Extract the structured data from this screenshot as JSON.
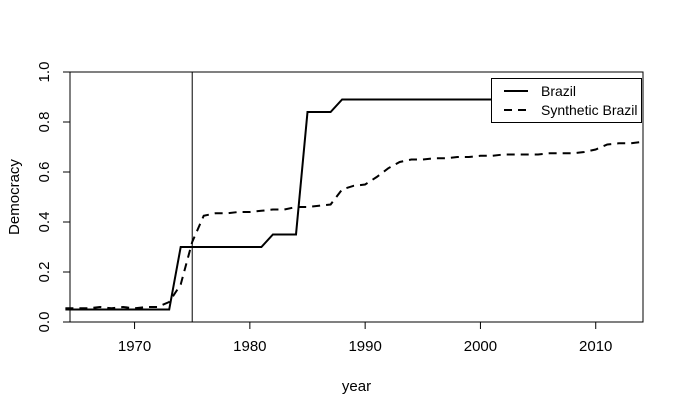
{
  "figure": {
    "background": "#ffffff",
    "axis_color": "#000000",
    "line_color": "#000000"
  },
  "chart_data": {
    "type": "line",
    "title": "",
    "xlabel": "year",
    "ylabel": "Democracy",
    "xlim": [
      1964.4,
      2014.1
    ],
    "ylim": [
      0,
      1
    ],
    "x_ticks": [
      1970,
      1980,
      1990,
      2000,
      2010
    ],
    "y_ticks": [
      "0.0",
      "0.2",
      "0.4",
      "0.6",
      "0.8",
      "1.0"
    ],
    "grid": false,
    "legend_position": "topright",
    "vline_x": 1975,
    "x": [
      1964,
      1965,
      1966,
      1967,
      1968,
      1969,
      1970,
      1971,
      1972,
      1973,
      1974,
      1975,
      1976,
      1977,
      1978,
      1979,
      1980,
      1981,
      1982,
      1983,
      1984,
      1985,
      1986,
      1987,
      1988,
      1989,
      1990,
      1991,
      1992,
      1993,
      1994,
      1995,
      1996,
      1997,
      1998,
      1999,
      2000,
      2001,
      2002,
      2003,
      2004,
      2005,
      2006,
      2007,
      2008,
      2009,
      2010,
      2011,
      2012,
      2013,
      2014
    ],
    "series": [
      {
        "name": "Brazil",
        "style": "solid",
        "color": "#000000",
        "values": [
          0.05,
          0.05,
          0.05,
          0.05,
          0.05,
          0.05,
          0.05,
          0.05,
          0.05,
          0.05,
          0.3,
          0.3,
          0.3,
          0.3,
          0.3,
          0.3,
          0.3,
          0.3,
          0.35,
          0.35,
          0.35,
          0.84,
          0.84,
          0.84,
          0.89,
          0.89,
          0.89,
          0.89,
          0.89,
          0.89,
          0.89,
          0.89,
          0.89,
          0.89,
          0.89,
          0.89,
          0.89,
          0.89,
          0.89,
          0.89,
          0.89,
          0.89,
          0.89,
          0.89,
          0.89,
          0.89,
          0.89,
          0.89,
          0.89,
          0.89,
          0.89
        ]
      },
      {
        "name": "Synthetic Brazil",
        "style": "dashed",
        "color": "#000000",
        "values": [
          0.055,
          0.055,
          0.055,
          0.06,
          0.055,
          0.06,
          0.055,
          0.06,
          0.06,
          0.08,
          0.15,
          0.32,
          0.425,
          0.435,
          0.435,
          0.44,
          0.44,
          0.445,
          0.45,
          0.45,
          0.46,
          0.46,
          0.465,
          0.47,
          0.53,
          0.545,
          0.55,
          0.58,
          0.615,
          0.64,
          0.65,
          0.65,
          0.655,
          0.655,
          0.66,
          0.66,
          0.665,
          0.665,
          0.67,
          0.67,
          0.67,
          0.67,
          0.675,
          0.675,
          0.675,
          0.68,
          0.69,
          0.71,
          0.715,
          0.715,
          0.72
        ]
      }
    ]
  }
}
